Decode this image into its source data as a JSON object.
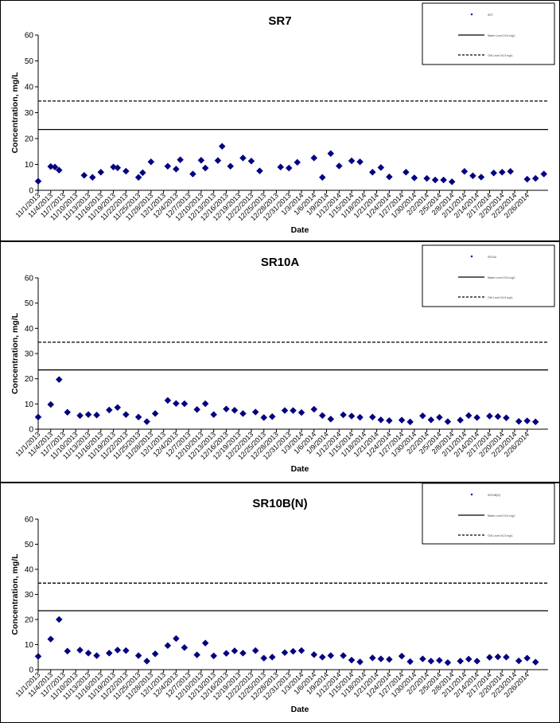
{
  "x_labels": [
    "11/1/2013",
    "11/4/2013",
    "11/7/2013",
    "11/10/2013",
    "11/13/2013",
    "11/16/2013",
    "11/19/2013",
    "11/22/2013",
    "11/25/2013",
    "11/28/2013",
    "12/1/2013",
    "12/4/2013",
    "12/7/2013",
    "12/10/2013",
    "12/13/2013",
    "12/16/2013",
    "12/19/2013",
    "12/22/2013",
    "12/25/2013",
    "12/28/2013",
    "12/31/2013",
    "1/3/2014",
    "1/6/2014",
    "1/9/2014",
    "1/12/2014",
    "1/15/2014",
    "1/18/2014",
    "1/21/2014",
    "1/24/2014",
    "1/27/2014",
    "1/30/2014",
    "2/2/2014",
    "2/5/2014",
    "2/8/2014",
    "2/11/2014",
    "2/14/2014",
    "2/17/2014",
    "2/20/2014",
    "2/23/2014",
    "2/26/2014"
  ],
  "chart_data": [
    {
      "type": "scatter",
      "title": "SR7",
      "xlabel": "Date",
      "ylabel": "Concentration, mg/L",
      "ylim": [
        0,
        60
      ],
      "yticks": [
        0,
        10,
        20,
        30,
        40,
        50,
        60
      ],
      "legend_position": "top-right",
      "marker_color": "#000080",
      "reference_lines": [
        {
          "style": "solid",
          "value": 23.5
        },
        {
          "style": "dashed",
          "value": 34.5
        }
      ],
      "legend": [
        "SR7",
        "Water Level 23.5 mg/L",
        "GW Level 34.5 mg/L"
      ],
      "points": [
        [
          "11/1/2013",
          3.5
        ],
        [
          "11/4/2013",
          9.2
        ],
        [
          "11/5/2013",
          9.0
        ],
        [
          "11/6/2013",
          7.8
        ],
        [
          "11/12/2013",
          5.8
        ],
        [
          "11/14/2013",
          5.0
        ],
        [
          "11/16/2013",
          7.0
        ],
        [
          "11/19/2013",
          9.0
        ],
        [
          "11/20/2013",
          8.7
        ],
        [
          "11/22/2013",
          7.4
        ],
        [
          "11/25/2013",
          5.0
        ],
        [
          "11/26/2013",
          6.8
        ],
        [
          "11/28/2013",
          11.0
        ],
        [
          "12/2/2013",
          9.3
        ],
        [
          "12/4/2013",
          8.2
        ],
        [
          "12/5/2013",
          11.8
        ],
        [
          "12/8/2013",
          6.3
        ],
        [
          "12/10/2013",
          11.6
        ],
        [
          "12/11/2013",
          8.6
        ],
        [
          "12/14/2013",
          11.5
        ],
        [
          "12/15/2013",
          17.0
        ],
        [
          "12/17/2013",
          9.3
        ],
        [
          "12/20/2013",
          12.5
        ],
        [
          "12/22/2013",
          11.3
        ],
        [
          "12/24/2013",
          7.5
        ],
        [
          "12/29/2013",
          9.0
        ],
        [
          "12/31/2013",
          8.6
        ],
        [
          "1/2/2014",
          10.8
        ],
        [
          "1/6/2014",
          12.5
        ],
        [
          "1/8/2014",
          5.0
        ],
        [
          "1/10/2014",
          14.2
        ],
        [
          "1/12/2014",
          9.4
        ],
        [
          "1/15/2014",
          11.4
        ],
        [
          "1/17/2014",
          11.0
        ],
        [
          "1/20/2014",
          7.0
        ],
        [
          "1/22/2014",
          8.8
        ],
        [
          "1/24/2014",
          5.2
        ],
        [
          "1/28/2014",
          7.0
        ],
        [
          "1/30/2014",
          4.8
        ],
        [
          "2/2/2014",
          4.6
        ],
        [
          "2/4/2014",
          4.0
        ],
        [
          "2/6/2014",
          4.0
        ],
        [
          "2/8/2014",
          3.3
        ],
        [
          "2/11/2014",
          7.3
        ],
        [
          "2/13/2014",
          5.6
        ],
        [
          "2/15/2014",
          5.1
        ],
        [
          "2/18/2014",
          6.7
        ],
        [
          "2/20/2014",
          7.0
        ],
        [
          "2/22/2014",
          7.3
        ],
        [
          "2/26/2014",
          4.3
        ],
        [
          "2/28/2014",
          4.6
        ],
        [
          "3/2/2014",
          6.3
        ]
      ]
    },
    {
      "type": "scatter",
      "title": "SR10A",
      "xlabel": "Date",
      "ylabel": "Concentration, mg/L",
      "ylim": [
        0,
        60
      ],
      "yticks": [
        0,
        10,
        20,
        30,
        40,
        50,
        60
      ],
      "legend_position": "top-right",
      "marker_color": "#000080",
      "reference_lines": [
        {
          "style": "solid",
          "value": 23.5
        },
        {
          "style": "dashed",
          "value": 34.5
        }
      ],
      "legend": [
        "SR10A",
        "Water Level 23.5 mg/L",
        "GW Level 34.5 mg/L"
      ],
      "points": [
        [
          "11/1/2013",
          4.8
        ],
        [
          "11/4/2013",
          9.8
        ],
        [
          "11/6/2013",
          19.7
        ],
        [
          "11/8/2013",
          6.7
        ],
        [
          "11/11/2013",
          5.4
        ],
        [
          "11/13/2013",
          5.8
        ],
        [
          "11/15/2013",
          5.6
        ],
        [
          "11/18/2013",
          7.6
        ],
        [
          "11/20/2013",
          8.6
        ],
        [
          "11/22/2013",
          5.8
        ],
        [
          "11/25/2013",
          4.8
        ],
        [
          "11/27/2013",
          3.0
        ],
        [
          "11/29/2013",
          6.2
        ],
        [
          "12/2/2013",
          11.4
        ],
        [
          "12/4/2013",
          10.2
        ],
        [
          "12/6/2013",
          10.1
        ],
        [
          "12/9/2013",
          7.8
        ],
        [
          "12/11/2013",
          10.1
        ],
        [
          "12/13/2013",
          5.8
        ],
        [
          "12/16/2013",
          8.0
        ],
        [
          "12/18/2013",
          7.5
        ],
        [
          "12/20/2013",
          6.2
        ],
        [
          "12/23/2013",
          6.8
        ],
        [
          "12/25/2013",
          4.6
        ],
        [
          "12/27/2013",
          5.0
        ],
        [
          "12/30/2013",
          7.4
        ],
        [
          "1/1/2014",
          7.4
        ],
        [
          "1/3/2014",
          6.6
        ],
        [
          "1/6/2014",
          7.9
        ],
        [
          "1/8/2014",
          5.4
        ],
        [
          "1/10/2014",
          4.0
        ],
        [
          "1/13/2014",
          5.7
        ],
        [
          "1/15/2014",
          5.2
        ],
        [
          "1/17/2014",
          4.7
        ],
        [
          "1/20/2014",
          4.8
        ],
        [
          "1/22/2014",
          3.7
        ],
        [
          "1/24/2014",
          3.4
        ],
        [
          "1/27/2014",
          3.6
        ],
        [
          "1/29/2014",
          2.9
        ],
        [
          "2/1/2014",
          5.3
        ],
        [
          "2/3/2014",
          3.7
        ],
        [
          "2/5/2014",
          4.7
        ],
        [
          "2/7/2014",
          3.0
        ],
        [
          "2/10/2014",
          3.6
        ],
        [
          "2/12/2014",
          5.4
        ],
        [
          "2/14/2014",
          4.6
        ],
        [
          "2/17/2014",
          5.2
        ],
        [
          "2/19/2014",
          5.0
        ],
        [
          "2/21/2014",
          4.5
        ],
        [
          "2/24/2014",
          3.1
        ],
        [
          "2/26/2014",
          3.3
        ],
        [
          "2/28/2014",
          2.9
        ]
      ]
    },
    {
      "type": "scatter",
      "title": "SR10B(N)",
      "xlabel": "Date",
      "ylabel": "Concentration, mg/L",
      "ylim": [
        0,
        60
      ],
      "yticks": [
        0,
        10,
        20,
        30,
        40,
        50,
        60
      ],
      "legend_position": "top-right",
      "marker_color": "#000080",
      "reference_lines": [
        {
          "style": "solid",
          "value": 23.5
        },
        {
          "style": "dashed",
          "value": 34.5
        }
      ],
      "legend": [
        "SR10B(N)",
        "Water Level 23.5 mg/L",
        "GW Level 34.5 mg/L"
      ],
      "points": [
        [
          "11/1/2013",
          5.3
        ],
        [
          "11/4/2013",
          12.2
        ],
        [
          "11/6/2013",
          20.0
        ],
        [
          "11/8/2013",
          7.4
        ],
        [
          "11/11/2013",
          7.8
        ],
        [
          "11/13/2013",
          6.6
        ],
        [
          "11/15/2013",
          5.6
        ],
        [
          "11/18/2013",
          6.6
        ],
        [
          "11/20/2013",
          7.8
        ],
        [
          "11/22/2013",
          7.6
        ],
        [
          "11/25/2013",
          5.6
        ],
        [
          "11/27/2013",
          3.4
        ],
        [
          "11/29/2013",
          6.3
        ],
        [
          "12/2/2013",
          9.6
        ],
        [
          "12/4/2013",
          12.4
        ],
        [
          "12/6/2013",
          8.8
        ],
        [
          "12/9/2013",
          5.9
        ],
        [
          "12/11/2013",
          10.6
        ],
        [
          "12/13/2013",
          5.5
        ],
        [
          "12/16/2013",
          6.5
        ],
        [
          "12/18/2013",
          7.5
        ],
        [
          "12/20/2013",
          6.6
        ],
        [
          "12/23/2013",
          7.6
        ],
        [
          "12/25/2013",
          4.6
        ],
        [
          "12/27/2013",
          5.0
        ],
        [
          "12/30/2013",
          6.8
        ],
        [
          "1/1/2014",
          7.3
        ],
        [
          "1/3/2014",
          7.6
        ],
        [
          "1/6/2014",
          6.0
        ],
        [
          "1/8/2014",
          5.0
        ],
        [
          "1/10/2014",
          5.6
        ],
        [
          "1/13/2014",
          5.6
        ],
        [
          "1/15/2014",
          3.8
        ],
        [
          "1/17/2014",
          3.1
        ],
        [
          "1/20/2014",
          4.7
        ],
        [
          "1/22/2014",
          4.3
        ],
        [
          "1/24/2014",
          4.1
        ],
        [
          "1/27/2014",
          5.4
        ],
        [
          "1/29/2014",
          3.2
        ],
        [
          "2/1/2014",
          4.3
        ],
        [
          "2/3/2014",
          3.4
        ],
        [
          "2/5/2014",
          3.7
        ],
        [
          "2/7/2014",
          2.8
        ],
        [
          "2/10/2014",
          3.4
        ],
        [
          "2/12/2014",
          4.2
        ],
        [
          "2/14/2014",
          3.4
        ],
        [
          "2/17/2014",
          4.9
        ],
        [
          "2/19/2014",
          5.1
        ],
        [
          "2/21/2014",
          5.0
        ],
        [
          "2/24/2014",
          3.5
        ],
        [
          "2/26/2014",
          4.6
        ],
        [
          "2/28/2014",
          3.0
        ]
      ]
    }
  ]
}
